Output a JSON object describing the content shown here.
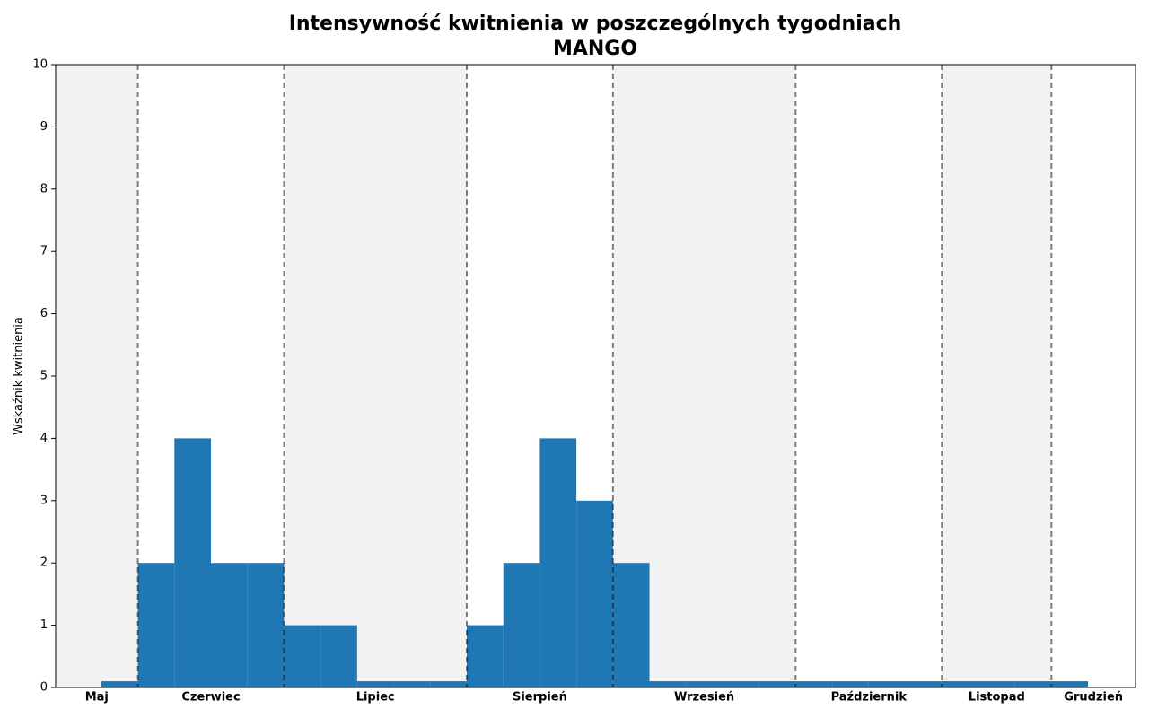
{
  "chart_data": {
    "type": "histogram",
    "title": "Intensywność kwitnienia w poszczególnych tygodniach",
    "subtitle": "MANGO",
    "y_label": "Wskaźnik kwitnienia",
    "bins": [
      0,
      1,
      2,
      3,
      4,
      5,
      6,
      7,
      8,
      9,
      10,
      11,
      12,
      13,
      14,
      15,
      16,
      17,
      18,
      19,
      20,
      21,
      22,
      23,
      24,
      25,
      26,
      27
    ],
    "values": [
      0.1,
      2,
      4,
      2,
      2,
      1,
      1,
      0.1,
      0.1,
      0.1,
      1,
      2,
      4,
      3,
      2,
      0.1,
      0.1,
      0.1,
      0.1,
      0.1,
      0.1,
      0.1,
      0.1,
      0.1,
      0.1,
      0.1,
      0.1
    ],
    "color": "#1f77b4",
    "months": [
      "Maj",
      "Czerwiec",
      "Lipiec",
      "Sierpień",
      "Wrzesień",
      "Październik",
      "Listopad",
      "Grudzień"
    ],
    "month_boundaries": [
      1,
      5,
      10,
      14,
      19,
      23,
      26
    ],
    "xlim": [
      -1.25,
      28.3
    ],
    "ylim": [
      0,
      10
    ],
    "yticks": [
      0,
      1,
      2,
      3,
      4,
      5,
      6,
      7,
      8,
      9,
      10
    ]
  }
}
